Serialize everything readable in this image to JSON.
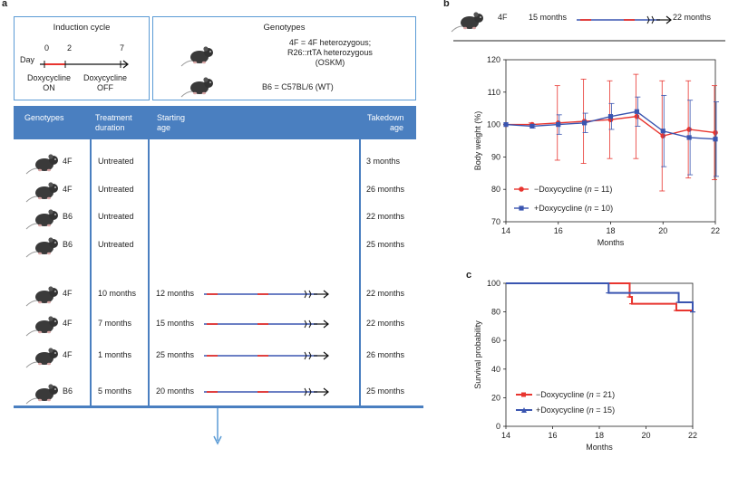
{
  "panel_a": {
    "letter": "a",
    "induction": {
      "title": "Induction cycle",
      "day_label": "Day",
      "ticks": [
        "0",
        "2",
        "7"
      ],
      "on_label": "Doxycycline\nON",
      "on_line1": "Doxycycline",
      "on_line2": "ON",
      "off_line1": "Doxycycline",
      "off_line2": "OFF"
    },
    "genotypes_box": {
      "title": "Genotypes",
      "line1": "4F = 4F heterozygous;",
      "line2": "R26::rtTA heterozygous",
      "line3": "(OSKM)",
      "line4": "B6 = C57BL/6 (WT)"
    },
    "table": {
      "headers": {
        "genotypes": "Genotypes",
        "treatment_1": "Treatment",
        "treatment_2": "duration",
        "starting_1": "Starting",
        "starting_2": "age",
        "takedown_1": "Takedown",
        "takedown_2": "age"
      },
      "rows": [
        {
          "genotype": "4F",
          "treatment": "Untreated",
          "start": "",
          "takedown": "3 months"
        },
        {
          "genotype": "4F",
          "treatment": "Untreated",
          "start": "",
          "takedown": "26 months"
        },
        {
          "genotype": "B6",
          "treatment": "Untreated",
          "start": "",
          "takedown": "22 months"
        },
        {
          "genotype": "B6",
          "treatment": "Untreated",
          "start": "",
          "takedown": "25 months"
        },
        {
          "genotype": "4F",
          "treatment": "10 months",
          "start": "12 months",
          "takedown": "22 months"
        },
        {
          "genotype": "4F",
          "treatment": "7 months",
          "start": "15 months",
          "takedown": "22 months"
        },
        {
          "genotype": "4F",
          "treatment": "1 months",
          "start": "25 months",
          "takedown": "26 months"
        },
        {
          "genotype": "B6",
          "treatment": "5 months",
          "start": "20 months",
          "takedown": "25 months"
        }
      ]
    }
  },
  "panel_b": {
    "letter": "b",
    "timeline": {
      "genotype": "4F",
      "start": "15 months",
      "end": "22 months"
    }
  },
  "panel_c": {
    "letter": "c"
  },
  "colors": {
    "red": "#e8352f",
    "blue": "#3a55b0",
    "header_blue": "#4a7fc0",
    "box_border": "#5b9bd5"
  },
  "chart_data": [
    {
      "type": "line",
      "title": "",
      "xlabel": "Months",
      "ylabel": "Body weight (%)",
      "xlim": [
        14,
        22
      ],
      "ylim": [
        70,
        120
      ],
      "xticks": [
        "14",
        "16",
        "18",
        "20",
        "22"
      ],
      "yticks": [
        "70",
        "80",
        "90",
        "100",
        "110",
        "120"
      ],
      "legend_position": "bottom-left",
      "series": [
        {
          "name": "−Doxycycline (n = 11)",
          "legend_prefix": "−Doxycycline (",
          "legend_n": "n",
          "legend_suffix": " = 11)",
          "color": "#e8352f",
          "marker": "circle",
          "x": [
            14,
            15,
            16,
            17,
            18,
            19,
            20,
            21,
            22
          ],
          "values": [
            100,
            100,
            100.5,
            101,
            101.5,
            102.5,
            96.5,
            98.5,
            97.5
          ],
          "err": [
            0,
            0.5,
            11.5,
            13,
            12,
            13,
            17,
            15,
            14.5
          ]
        },
        {
          "name": "+Doxycycline (n = 10)",
          "legend_prefix": "+Doxycycline (",
          "legend_n": "n",
          "legend_suffix": " = 10)",
          "color": "#3a55b0",
          "marker": "square",
          "x": [
            14,
            15,
            16,
            17,
            18,
            19,
            20,
            21,
            22
          ],
          "values": [
            100,
            99.5,
            100,
            100.5,
            102.5,
            104,
            98,
            96,
            95.5
          ],
          "err": [
            0,
            0.5,
            3,
            3,
            4,
            4.5,
            11,
            11.5,
            11.5
          ]
        }
      ]
    },
    {
      "type": "line",
      "title": "",
      "xlabel": "Months",
      "ylabel": "Survival probability",
      "xlim": [
        14,
        22
      ],
      "ylim": [
        0,
        100
      ],
      "xticks": [
        "14",
        "16",
        "18",
        "20",
        "22"
      ],
      "yticks": [
        "0",
        "20",
        "40",
        "60",
        "80",
        "100"
      ],
      "legend_position": "bottom-left",
      "series": [
        {
          "name": "−Doxycycline (n = 21)",
          "legend_prefix": "−Doxycycline (",
          "legend_n": "n",
          "legend_suffix": " = 21)",
          "color": "#e8352f",
          "step": true,
          "x": [
            14,
            19.3,
            19.3,
            19.4,
            19.4,
            21.3,
            21.3,
            22
          ],
          "values": [
            100,
            100,
            90.5,
            90.5,
            85.7,
            85.7,
            81,
            81
          ]
        },
        {
          "name": "+Doxycycline (n = 15)",
          "legend_prefix": "+Doxycycline (",
          "legend_n": "n",
          "legend_suffix": " = 15)",
          "color": "#3a55b0",
          "step": true,
          "x": [
            14,
            18.4,
            18.4,
            21.4,
            21.4,
            22,
            22
          ],
          "values": [
            100,
            100,
            93.3,
            93.3,
            86.7,
            86.7,
            80
          ]
        }
      ]
    }
  ]
}
